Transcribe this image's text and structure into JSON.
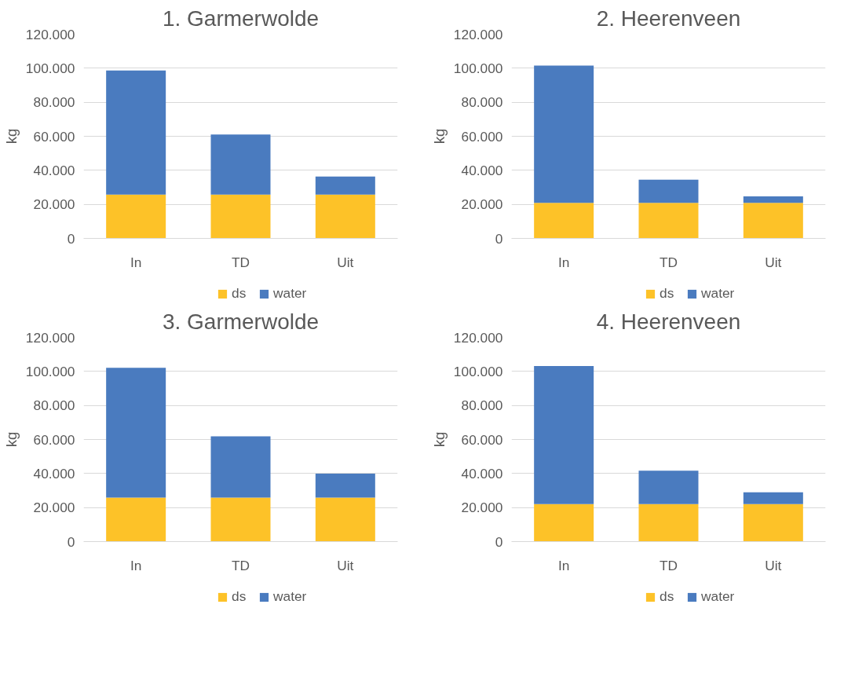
{
  "chart_data": [
    {
      "type": "bar",
      "title": "1. Garmerwolde",
      "ylabel": "kg",
      "categories": [
        "In",
        "TD",
        "Uit"
      ],
      "stacked": true,
      "legend": "bottom",
      "grid": "y",
      "ylim": [
        0,
        120000
      ],
      "yticks": [
        0,
        {
          "value": 20000,
          "label": "20.000"
        },
        {
          "value": 40000,
          "label": "40.000"
        },
        {
          "value": 60000,
          "label": "60.000"
        },
        {
          "value": 80000,
          "label": "80.000"
        },
        {
          "value": 100000,
          "label": "100.000"
        },
        {
          "value": 120000,
          "label": "120.000"
        }
      ],
      "series": [
        {
          "name": "ds",
          "color": "#fdc228",
          "values": [
            25700,
            25700,
            25700
          ]
        },
        {
          "name": "water",
          "color": "#4a7bbf",
          "values": [
            73000,
            35300,
            10700
          ]
        }
      ]
    },
    {
      "type": "bar",
      "title": "2. Heerenveen",
      "ylabel": "kg",
      "categories": [
        "In",
        "TD",
        "Uit"
      ],
      "stacked": true,
      "legend": "bottom",
      "grid": "y",
      "ylim": [
        0,
        120000
      ],
      "yticks": [
        0,
        {
          "value": 20000,
          "label": "20.000"
        },
        {
          "value": 40000,
          "label": "40.000"
        },
        {
          "value": 60000,
          "label": "60.000"
        },
        {
          "value": 80000,
          "label": "80.000"
        },
        {
          "value": 100000,
          "label": "100.000"
        },
        {
          "value": 120000,
          "label": "120.000"
        }
      ],
      "series": [
        {
          "name": "ds",
          "color": "#fdc228",
          "values": [
            20900,
            20900,
            20900
          ]
        },
        {
          "name": "water",
          "color": "#4a7bbf",
          "values": [
            80600,
            13600,
            3800
          ]
        }
      ]
    },
    {
      "type": "bar",
      "title": "3. Garmerwolde",
      "ylabel": "kg",
      "categories": [
        "In",
        "TD",
        "Uit"
      ],
      "stacked": true,
      "legend": "bottom",
      "grid": "y",
      "ylim": [
        0,
        120000
      ],
      "yticks": [
        0,
        {
          "value": 20000,
          "label": "20.000"
        },
        {
          "value": 40000,
          "label": "40.000"
        },
        {
          "value": 60000,
          "label": "60.000"
        },
        {
          "value": 80000,
          "label": "80.000"
        },
        {
          "value": 100000,
          "label": "100.000"
        },
        {
          "value": 120000,
          "label": "120.000"
        }
      ],
      "series": [
        {
          "name": "ds",
          "color": "#fdc228",
          "values": [
            25900,
            25900,
            25900
          ]
        },
        {
          "name": "water",
          "color": "#4a7bbf",
          "values": [
            76200,
            36000,
            14000
          ]
        }
      ]
    },
    {
      "type": "bar",
      "title": "4. Heerenveen",
      "ylabel": "kg",
      "categories": [
        "In",
        "TD",
        "Uit"
      ],
      "stacked": true,
      "legend": "bottom",
      "grid": "y",
      "ylim": [
        0,
        120000
      ],
      "yticks": [
        0,
        {
          "value": 20000,
          "label": "20.000"
        },
        {
          "value": 40000,
          "label": "40.000"
        },
        {
          "value": 60000,
          "label": "60.000"
        },
        {
          "value": 80000,
          "label": "80.000"
        },
        {
          "value": 100000,
          "label": "100.000"
        },
        {
          "value": 120000,
          "label": "120.000"
        }
      ],
      "series": [
        {
          "name": "ds",
          "color": "#fdc228",
          "values": [
            22000,
            22000,
            22000
          ]
        },
        {
          "name": "water",
          "color": "#4a7bbf",
          "values": [
            81200,
            19700,
            7000
          ]
        }
      ]
    }
  ]
}
